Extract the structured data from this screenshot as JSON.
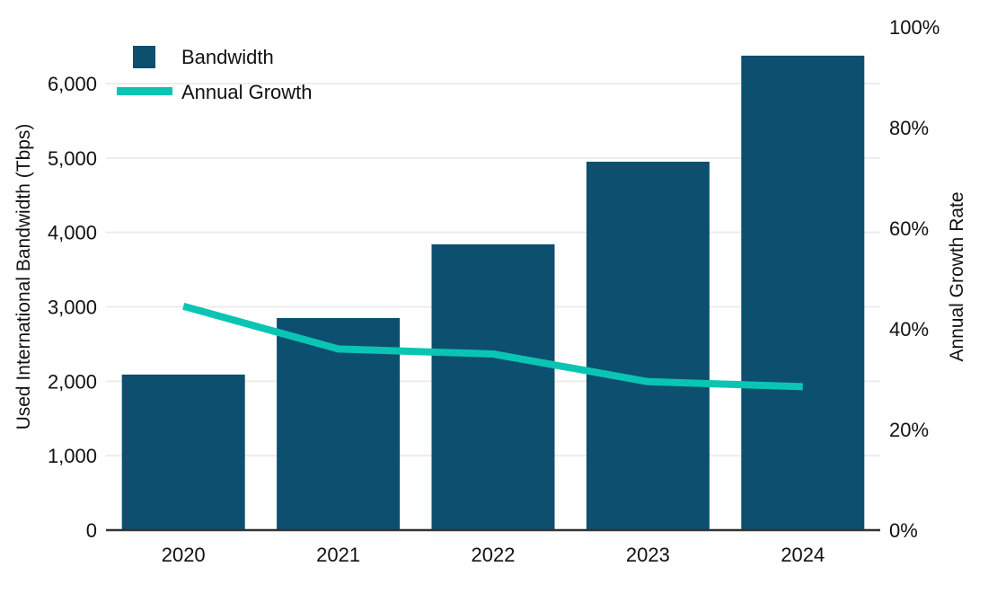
{
  "chart_data": {
    "type": "bar",
    "subtype": "combo-bar-line-dual-axis",
    "categories": [
      "2020",
      "2021",
      "2022",
      "2023",
      "2024"
    ],
    "series": [
      {
        "name": "Bandwidth",
        "type": "bar",
        "axis": "left",
        "color": "#0d4f6e",
        "values": [
          2090,
          2850,
          3840,
          4950,
          6375
        ]
      },
      {
        "name": "Annual Growth",
        "type": "line",
        "axis": "right",
        "color": "#0ac5b3",
        "values": [
          44.5,
          36,
          35,
          29.5,
          28.5
        ]
      }
    ],
    "left_axis": {
      "label": "Used International Bandwidth (Tbps)",
      "range": [
        0,
        6000
      ],
      "ticks": [
        {
          "value": 0,
          "label": "0"
        },
        {
          "value": 1000,
          "label": "1,000"
        },
        {
          "value": 2000,
          "label": "2,000"
        },
        {
          "value": 3000,
          "label": "3,000"
        },
        {
          "value": 4000,
          "label": "4,000"
        },
        {
          "value": 5000,
          "label": "5,000"
        },
        {
          "value": 6000,
          "label": "6,000"
        }
      ]
    },
    "right_axis": {
      "label": "Annual Growth Rate",
      "range": [
        0,
        100
      ],
      "ticks": [
        {
          "value": 0,
          "label": "0%"
        },
        {
          "value": 20,
          "label": "20%"
        },
        {
          "value": 40,
          "label": "40%"
        },
        {
          "value": 60,
          "label": "60%"
        },
        {
          "value": 80,
          "label": "80%"
        },
        {
          "value": 100,
          "label": "100%"
        }
      ]
    },
    "legend": {
      "position": "top-left"
    },
    "grid": {
      "show": true,
      "color": "#ececec",
      "axis_line_color": "#333333"
    },
    "title": ""
  }
}
